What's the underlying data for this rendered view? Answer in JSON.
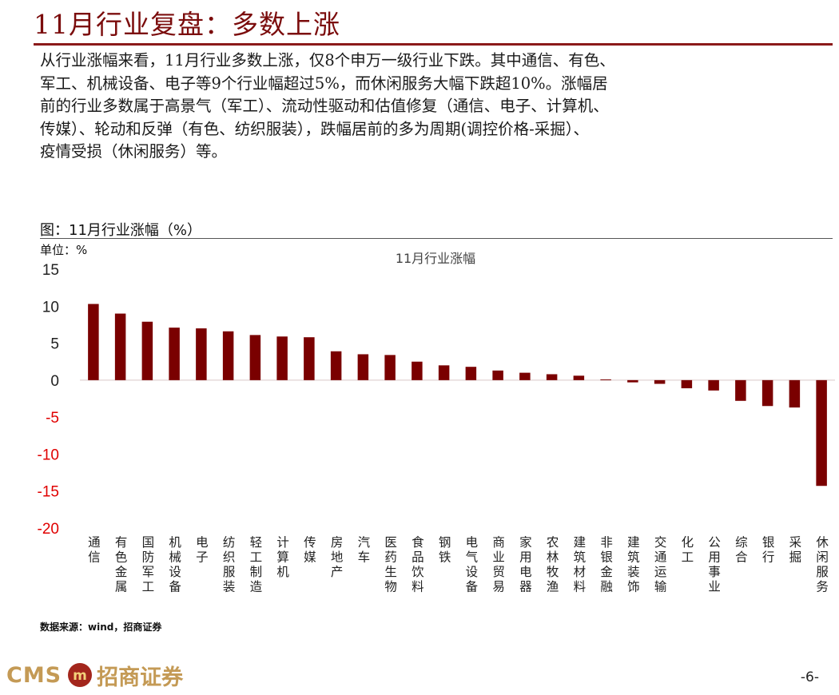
{
  "header": {
    "title": "11月行业复盘：多数上涨"
  },
  "summary": {
    "lines": [
      "从行业涨幅来看，11月行业多数上涨，仅8个申万一级行业下跌。其中通信、有色、",
      "军工、机械设备、电子等9个行业幅超过5%，而休闲服务大幅下跌超10%。涨幅居",
      "前的行业多数属于高景气（军工）、流动性驱动和估值修复（通信、电子、计算机、",
      "传媒）、轮动和反弹（有色、纺织服装），跌幅居前的多为周期(调控价格-采掘）、",
      "疫情受损（休闲服务）等。"
    ]
  },
  "figure": {
    "caption": "图：11月行业涨幅（%）",
    "unit": "单位：%",
    "source": "数据来源：wind，招商证券"
  },
  "colors": {
    "bar": "#7a0000",
    "accent": "#8b1a1a",
    "axis_text": "#e00000",
    "logo": "#c49a55"
  },
  "chart_data": {
    "type": "bar",
    "title": "11月行业涨幅",
    "ylabel": "%",
    "ylim": [
      -20,
      15
    ],
    "yticks": [
      15,
      10,
      5,
      0,
      -5,
      -10,
      -15,
      -20
    ],
    "grid": false,
    "categories": [
      "通信",
      "有色金属",
      "国防军工",
      "机械设备",
      "电子",
      "纺织服装",
      "轻工制造",
      "计算机",
      "传媒",
      "房地产",
      "汽车",
      "医药生物",
      "食品饮料",
      "钢铁",
      "电气设备",
      "商业贸易",
      "家用电器",
      "农林牧渔",
      "建筑材料",
      "非银金融",
      "建筑装饰",
      "交通运输",
      "化工",
      "公用事业",
      "综合",
      "银行",
      "采掘",
      "休闲服务"
    ],
    "values": [
      10.3,
      9.0,
      7.9,
      7.1,
      7.0,
      6.6,
      6.1,
      5.9,
      5.8,
      3.9,
      3.5,
      3.4,
      2.5,
      2.0,
      1.8,
      1.3,
      1.0,
      0.8,
      0.6,
      0.1,
      -0.3,
      -0.5,
      -1.1,
      -1.4,
      -2.8,
      -3.5,
      -3.7,
      -14.3
    ]
  },
  "footer": {
    "logo_text": "CMS",
    "logo_badge": "m",
    "company": "招商证券",
    "page": "-6-"
  }
}
